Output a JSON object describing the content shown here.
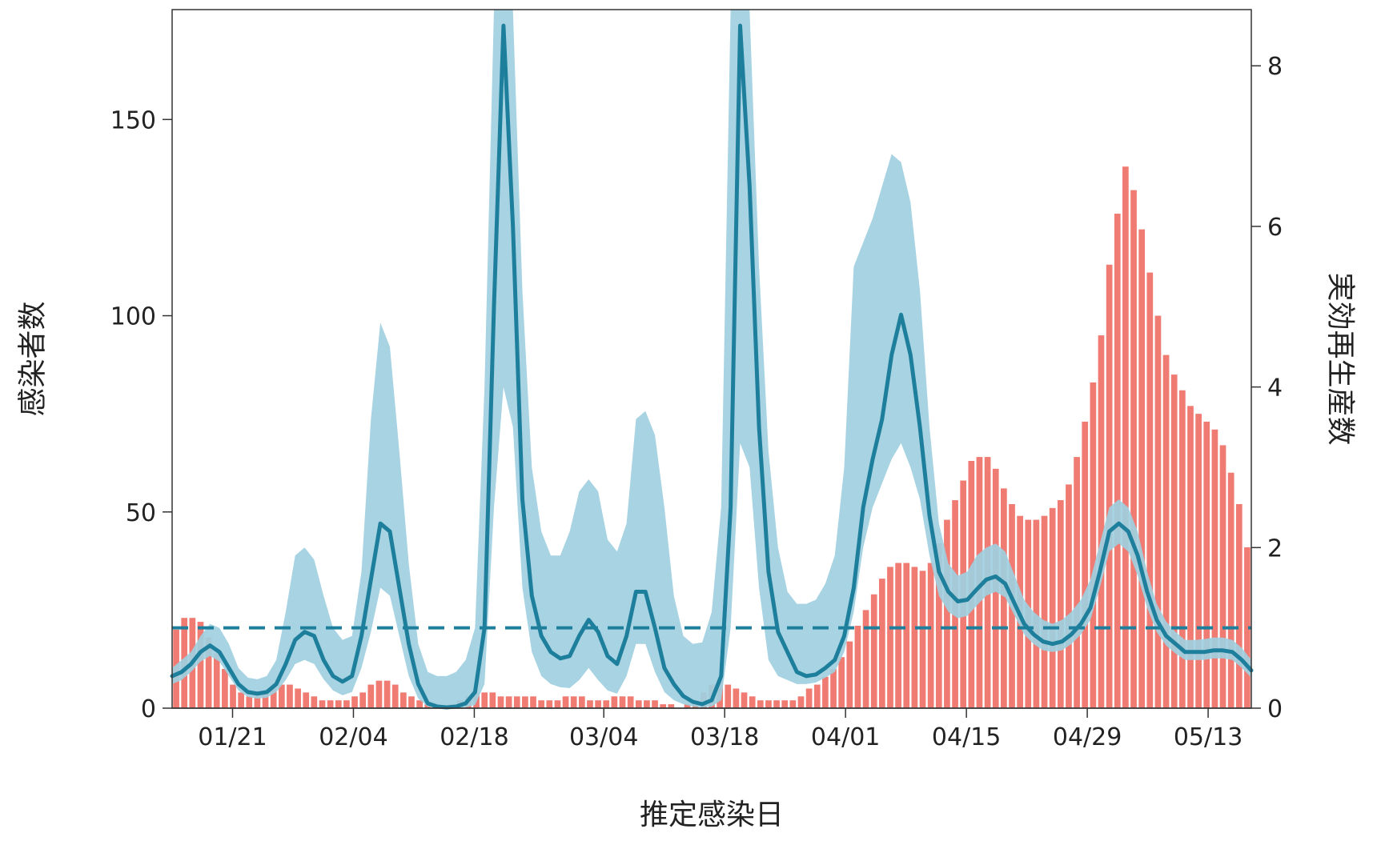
{
  "chart_data": {
    "type": "bar+line",
    "xlabel": "推定感染日",
    "ylabel_left": "感染者数",
    "ylabel_right": "実効再生産数",
    "x_start": "01/14",
    "x_end": "05/18",
    "x_ticks": [
      "01/21",
      "02/04",
      "02/18",
      "03/04",
      "03/18",
      "04/01",
      "04/15",
      "04/29",
      "05/13"
    ],
    "ylim_left": [
      0,
      150
    ],
    "yticks_left": [
      0,
      50,
      100,
      150
    ],
    "ylim_right": [
      0,
      8
    ],
    "yticks_right": [
      0,
      2,
      4,
      6,
      8
    ],
    "reference_line_rt": 1,
    "colors": {
      "bars": "#f07b72",
      "band": "#9fcfdf",
      "band_inner": "#5a8fab",
      "line": "#1e7f9c"
    },
    "bars": {
      "name": "感染者数",
      "values": [
        20,
        23,
        23,
        22,
        18,
        14,
        10,
        6,
        4,
        3,
        3,
        4,
        5,
        6,
        6,
        5,
        4,
        3,
        2,
        2,
        2,
        2,
        3,
        4,
        6,
        7,
        7,
        6,
        4,
        3,
        2,
        1,
        1,
        0,
        1,
        2,
        3,
        4,
        4,
        4,
        3,
        3,
        3,
        3,
        3,
        2,
        2,
        2,
        3,
        3,
        3,
        2,
        2,
        2,
        3,
        3,
        3,
        2,
        2,
        2,
        1,
        1,
        0,
        1,
        2,
        4,
        6,
        7,
        6,
        5,
        4,
        3,
        2,
        2,
        2,
        2,
        2,
        3,
        5,
        6,
        8,
        10,
        13,
        17,
        21,
        25,
        29,
        33,
        36,
        37,
        37,
        36,
        35,
        37,
        42,
        48,
        53,
        58,
        63,
        64,
        64,
        61,
        56,
        52,
        49,
        48,
        48,
        49,
        51,
        53,
        57,
        64,
        73,
        83,
        95,
        113,
        126,
        138,
        132,
        122,
        111,
        100,
        90,
        85,
        81,
        77,
        75,
        73,
        71,
        67,
        60,
        52,
        41
      ]
    },
    "rt": {
      "name": "実効再生産数",
      "series_color_line": "#1e7f9c",
      "values": [
        0.4,
        0.45,
        0.55,
        0.7,
        0.78,
        0.7,
        0.5,
        0.3,
        0.2,
        0.18,
        0.2,
        0.3,
        0.55,
        0.85,
        0.95,
        0.9,
        0.6,
        0.4,
        0.33,
        0.4,
        0.9,
        1.6,
        2.3,
        2.2,
        1.5,
        0.8,
        0.3,
        0.06,
        0.02,
        0.01,
        0.02,
        0.06,
        0.2,
        1.0,
        5.0,
        8.5,
        6.0,
        2.6,
        1.4,
        0.9,
        0.7,
        0.62,
        0.65,
        0.9,
        1.1,
        0.95,
        0.65,
        0.55,
        0.9,
        1.45,
        1.45,
        1.0,
        0.5,
        0.3,
        0.15,
        0.08,
        0.05,
        0.1,
        0.4,
        2.5,
        8.5,
        6.5,
        3.5,
        1.7,
        0.95,
        0.7,
        0.45,
        0.4,
        0.42,
        0.5,
        0.6,
        0.9,
        1.5,
        2.5,
        3.1,
        3.6,
        4.4,
        4.9,
        4.4,
        3.5,
        2.4,
        1.7,
        1.45,
        1.33,
        1.35,
        1.48,
        1.6,
        1.64,
        1.55,
        1.3,
        1.05,
        0.92,
        0.83,
        0.8,
        0.83,
        0.92,
        1.05,
        1.25,
        1.7,
        2.2,
        2.3,
        2.2,
        1.9,
        1.45,
        1.1,
        0.9,
        0.8,
        0.7,
        0.7,
        0.7,
        0.72,
        0.72,
        0.7,
        0.6,
        0.47
      ]
    },
    "rt_band": {
      "lower": [
        0.3,
        0.35,
        0.45,
        0.58,
        0.65,
        0.58,
        0.4,
        0.22,
        0.14,
        0.12,
        0.13,
        0.2,
        0.35,
        0.55,
        0.6,
        0.55,
        0.36,
        0.22,
        0.16,
        0.2,
        0.5,
        0.95,
        1.5,
        1.4,
        0.9,
        0.4,
        0.12,
        0.02,
        0.0,
        0.0,
        0.0,
        0.01,
        0.04,
        0.3,
        2.5,
        4.0,
        3.5,
        1.5,
        0.7,
        0.4,
        0.3,
        0.26,
        0.25,
        0.35,
        0.5,
        0.35,
        0.22,
        0.18,
        0.4,
        0.8,
        0.8,
        0.45,
        0.2,
        0.1,
        0.05,
        0.02,
        0.01,
        0.02,
        0.1,
        1.0,
        3.3,
        3.0,
        1.5,
        0.6,
        0.4,
        0.35,
        0.3,
        0.3,
        0.32,
        0.38,
        0.45,
        0.7,
        1.2,
        2.0,
        2.5,
        2.8,
        3.1,
        3.3,
        3.0,
        2.6,
        1.9,
        1.4,
        1.2,
        1.12,
        1.15,
        1.28,
        1.4,
        1.45,
        1.38,
        1.15,
        0.92,
        0.8,
        0.72,
        0.7,
        0.72,
        0.8,
        0.92,
        1.1,
        1.5,
        1.95,
        2.05,
        1.95,
        1.65,
        1.25,
        0.95,
        0.78,
        0.68,
        0.6,
        0.6,
        0.6,
        0.62,
        0.62,
        0.6,
        0.5,
        0.38
      ],
      "upper": [
        0.5,
        0.6,
        0.7,
        0.9,
        1.05,
        1.0,
        0.8,
        0.5,
        0.38,
        0.36,
        0.4,
        0.6,
        1.2,
        1.9,
        2.0,
        1.85,
        1.4,
        1.0,
        0.85,
        0.9,
        1.7,
        3.6,
        4.8,
        4.5,
        3.2,
        1.8,
        0.8,
        0.45,
        0.4,
        0.4,
        0.45,
        0.6,
        1.0,
        4.0,
        8.7,
        8.7,
        8.7,
        5.2,
        3.0,
        2.2,
        1.9,
        1.9,
        2.2,
        2.7,
        2.85,
        2.7,
        2.1,
        1.95,
        2.3,
        3.6,
        3.7,
        3.4,
        2.5,
        1.4,
        0.9,
        0.8,
        0.82,
        1.2,
        2.5,
        8.7,
        8.7,
        8.7,
        5.5,
        3.2,
        2.0,
        1.45,
        1.3,
        1.3,
        1.35,
        1.55,
        1.9,
        3.0,
        5.5,
        5.8,
        6.1,
        6.5,
        6.9,
        6.8,
        6.3,
        5.2,
        3.5,
        2.3,
        1.8,
        1.65,
        1.7,
        1.9,
        2.0,
        2.05,
        1.95,
        1.65,
        1.35,
        1.2,
        1.1,
        1.05,
        1.1,
        1.2,
        1.35,
        1.6,
        2.05,
        2.5,
        2.6,
        2.5,
        2.2,
        1.7,
        1.3,
        1.08,
        0.95,
        0.85,
        0.85,
        0.86,
        0.88,
        0.88,
        0.85,
        0.75,
        0.6
      ]
    }
  }
}
